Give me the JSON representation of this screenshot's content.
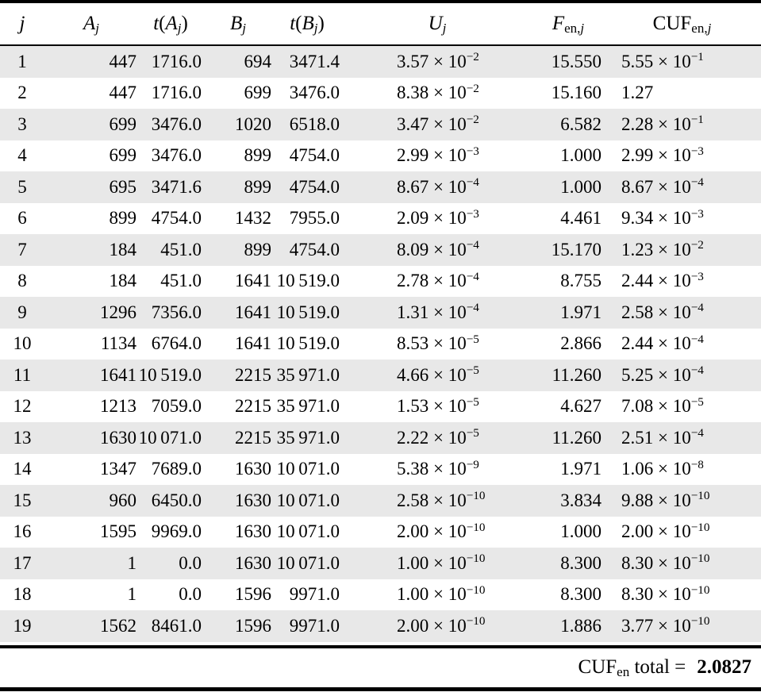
{
  "table": {
    "columns": [
      "j",
      "A_j",
      "t(A_j)",
      "B_j",
      "t(B_j)",
      "U_j",
      "F_en,j",
      "CUF_en,j"
    ],
    "rows": [
      [
        "1",
        "447",
        "1716.0",
        "694",
        "3471.4",
        {
          "m": "3.57",
          "e": "-2"
        },
        "15.550",
        {
          "m": "5.55",
          "e": "-1"
        }
      ],
      [
        "2",
        "447",
        "1716.0",
        "699",
        "3476.0",
        {
          "m": "8.38",
          "e": "-2"
        },
        "15.160",
        {
          "m": "1.27",
          "e": ""
        }
      ],
      [
        "3",
        "699",
        "3476.0",
        "1020",
        "6518.0",
        {
          "m": "3.47",
          "e": "-2"
        },
        "6.582",
        {
          "m": "2.28",
          "e": "-1"
        }
      ],
      [
        "4",
        "699",
        "3476.0",
        "899",
        "4754.0",
        {
          "m": "2.99",
          "e": "-3"
        },
        "1.000",
        {
          "m": "2.99",
          "e": "-3"
        }
      ],
      [
        "5",
        "695",
        "3471.6",
        "899",
        "4754.0",
        {
          "m": "8.67",
          "e": "-4"
        },
        "1.000",
        {
          "m": "8.67",
          "e": "-4"
        }
      ],
      [
        "6",
        "899",
        "4754.0",
        "1432",
        "7955.0",
        {
          "m": "2.09",
          "e": "-3"
        },
        "4.461",
        {
          "m": "9.34",
          "e": "-3"
        }
      ],
      [
        "7",
        "184",
        "451.0",
        "899",
        "4754.0",
        {
          "m": "8.09",
          "e": "-4"
        },
        "15.170",
        {
          "m": "1.23",
          "e": "-2"
        }
      ],
      [
        "8",
        "184",
        "451.0",
        "1641",
        "10 519.0",
        {
          "m": "2.78",
          "e": "-4"
        },
        "8.755",
        {
          "m": "2.44",
          "e": "-3"
        }
      ],
      [
        "9",
        "1296",
        "7356.0",
        "1641",
        "10 519.0",
        {
          "m": "1.31",
          "e": "-4"
        },
        "1.971",
        {
          "m": "2.58",
          "e": "-4"
        }
      ],
      [
        "10",
        "1134",
        "6764.0",
        "1641",
        "10 519.0",
        {
          "m": "8.53",
          "e": "-5"
        },
        "2.866",
        {
          "m": "2.44",
          "e": "-4"
        }
      ],
      [
        "11",
        "1641",
        "10 519.0",
        "2215",
        "35 971.0",
        {
          "m": "4.66",
          "e": "-5"
        },
        "11.260",
        {
          "m": "5.25",
          "e": "-4"
        }
      ],
      [
        "12",
        "1213",
        "7059.0",
        "2215",
        "35 971.0",
        {
          "m": "1.53",
          "e": "-5"
        },
        "4.627",
        {
          "m": "7.08",
          "e": "-5"
        }
      ],
      [
        "13",
        "1630",
        "10 071.0",
        "2215",
        "35 971.0",
        {
          "m": "2.22",
          "e": "-5"
        },
        "11.260",
        {
          "m": "2.51",
          "e": "-4"
        }
      ],
      [
        "14",
        "1347",
        "7689.0",
        "1630",
        "10 071.0",
        {
          "m": "5.38",
          "e": "-9"
        },
        "1.971",
        {
          "m": "1.06",
          "e": "-8"
        }
      ],
      [
        "15",
        "960",
        "6450.0",
        "1630",
        "10 071.0",
        {
          "m": "2.58",
          "e": "-10"
        },
        "3.834",
        {
          "m": "9.88",
          "e": "-10"
        }
      ],
      [
        "16",
        "1595",
        "9969.0",
        "1630",
        "10 071.0",
        {
          "m": "2.00",
          "e": "-10"
        },
        "1.000",
        {
          "m": "2.00",
          "e": "-10"
        }
      ],
      [
        "17",
        "1",
        "0.0",
        "1630",
        "10 071.0",
        {
          "m": "1.00",
          "e": "-10"
        },
        "8.300",
        {
          "m": "8.30",
          "e": "-10"
        }
      ],
      [
        "18",
        "1",
        "0.0",
        "1596",
        "9971.0",
        {
          "m": "1.00",
          "e": "-10"
        },
        "8.300",
        {
          "m": "8.30",
          "e": "-10"
        }
      ],
      [
        "19",
        "1562",
        "8461.0",
        "1596",
        "9971.0",
        {
          "m": "2.00",
          "e": "-10"
        },
        "1.886",
        {
          "m": "3.77",
          "e": "-10"
        }
      ]
    ],
    "total": {
      "label_base": "CUF",
      "label_sub": "en",
      "label_rest": "total =",
      "value": "2.0827"
    }
  },
  "colors": {
    "stripe": "#e8e8e8",
    "rule": "#000000",
    "background": "#ffffff"
  }
}
